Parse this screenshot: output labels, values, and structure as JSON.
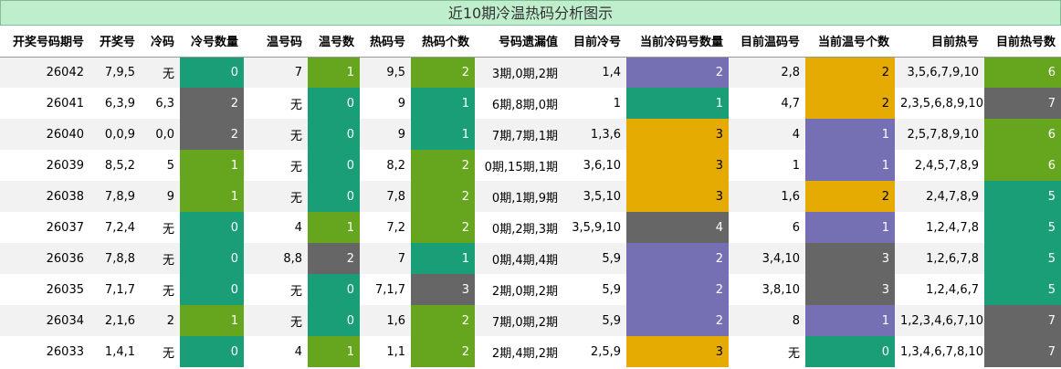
{
  "title": "近10期冷温热码分析图示",
  "headers": [
    "开奖号码期号",
    "开奖号",
    "冷码",
    "冷号数量",
    "温号码",
    "温号数",
    "热码号",
    "热码个数",
    "号码遗漏值",
    "目前冷号",
    "当前冷码号数量",
    "目前温码号",
    "当前温号个数",
    "目前热号",
    "目前热号数"
  ],
  "colors": {
    "teal": "#1a9e77",
    "green": "#66a61e",
    "gray": "#666666",
    "purple": "#7570b3",
    "gold": "#e6ab02"
  },
  "rows": [
    {
      "cells": [
        "26042",
        "7,9,5",
        "无",
        "0",
        "7",
        "1",
        "9,5",
        "2",
        "3期,0期,2期",
        "1,4",
        "2",
        "2,8",
        "2",
        "3,5,6,7,9,10",
        "6"
      ]
    },
    {
      "cells": [
        "26041",
        "6,3,9",
        "6,3",
        "2",
        "无",
        "0",
        "9",
        "1",
        "6期,8期,0期",
        "1",
        "1",
        "4,7",
        "2",
        "2,3,5,6,8,9,10",
        "7"
      ]
    },
    {
      "cells": [
        "26040",
        "0,0,9",
        "0,0",
        "2",
        "无",
        "0",
        "9",
        "1",
        "7期,7期,1期",
        "1,3,6",
        "3",
        "4",
        "1",
        "2,5,7,8,9,10",
        "6"
      ]
    },
    {
      "cells": [
        "26039",
        "8,5,2",
        "5",
        "1",
        "无",
        "0",
        "8,2",
        "2",
        "0期,15期,1期",
        "3,6,10",
        "3",
        "1",
        "1",
        "2,4,5,7,8,9",
        "6"
      ]
    },
    {
      "cells": [
        "26038",
        "7,8,9",
        "9",
        "1",
        "无",
        "0",
        "7,8",
        "2",
        "0期,1期,9期",
        "3,5,10",
        "3",
        "1,6",
        "2",
        "2,4,7,8,9",
        "5"
      ]
    },
    {
      "cells": [
        "26037",
        "7,2,4",
        "无",
        "0",
        "4",
        "1",
        "7,2",
        "2",
        "0期,2期,3期",
        "3,5,9,10",
        "4",
        "6",
        "1",
        "1,2,4,7,8",
        "5"
      ]
    },
    {
      "cells": [
        "26036",
        "7,8,8",
        "无",
        "0",
        "8,8",
        "2",
        "7",
        "1",
        "0期,4期,4期",
        "5,9",
        "2",
        "3,4,10",
        "3",
        "1,2,6,7,8",
        "5"
      ]
    },
    {
      "cells": [
        "26035",
        "7,1,7",
        "无",
        "0",
        "无",
        "0",
        "7,1,7",
        "3",
        "2期,0期,2期",
        "5,9",
        "2",
        "3,8,10",
        "3",
        "1,2,4,6,7",
        "5"
      ]
    },
    {
      "cells": [
        "26034",
        "2,1,6",
        "2",
        "1",
        "无",
        "0",
        "1,6",
        "2",
        "7期,0期,2期",
        "5,9",
        "2",
        "8",
        "1",
        "1,2,3,4,6,7,10",
        "7"
      ]
    },
    {
      "cells": [
        "26033",
        "1,4,1",
        "无",
        "0",
        "4",
        "1",
        "1,1",
        "2",
        "2期,4期,2期",
        "2,5,9",
        "3",
        "无",
        "0",
        "1,3,4,6,7,8,10",
        "7"
      ]
    }
  ]
}
